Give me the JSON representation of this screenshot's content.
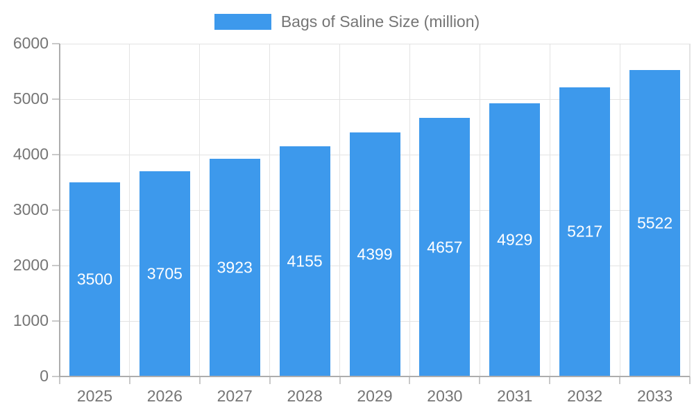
{
  "legend": {
    "label": "Bags of Saline Size (million)"
  },
  "colors": {
    "bar": "#3D99EC",
    "grid": "#E3E3E3",
    "axis": "#ADADAD",
    "tick": "#C9C9C9",
    "text": "#757575",
    "value_label": "#FFFFFF",
    "background": "#FFFFFF"
  },
  "chart_data": {
    "type": "bar",
    "title": "",
    "xlabel": "",
    "ylabel": "",
    "categories": [
      "2025",
      "2026",
      "2027",
      "2028",
      "2029",
      "2030",
      "2031",
      "2032",
      "2033"
    ],
    "series": [
      {
        "name": "Bags of Saline Size (million)",
        "values": [
          3500,
          3705,
          3923,
          4155,
          4399,
          4657,
          4929,
          5217,
          5522
        ]
      }
    ],
    "value_labels": "inside-center",
    "ylim": [
      0,
      6000
    ],
    "ytick_step": 1000,
    "ytick_labels": [
      "0",
      "1000",
      "2000",
      "3000",
      "4000",
      "5000",
      "6000"
    ],
    "grid": true,
    "grid_vertical": true,
    "legend_position": "top-center"
  }
}
